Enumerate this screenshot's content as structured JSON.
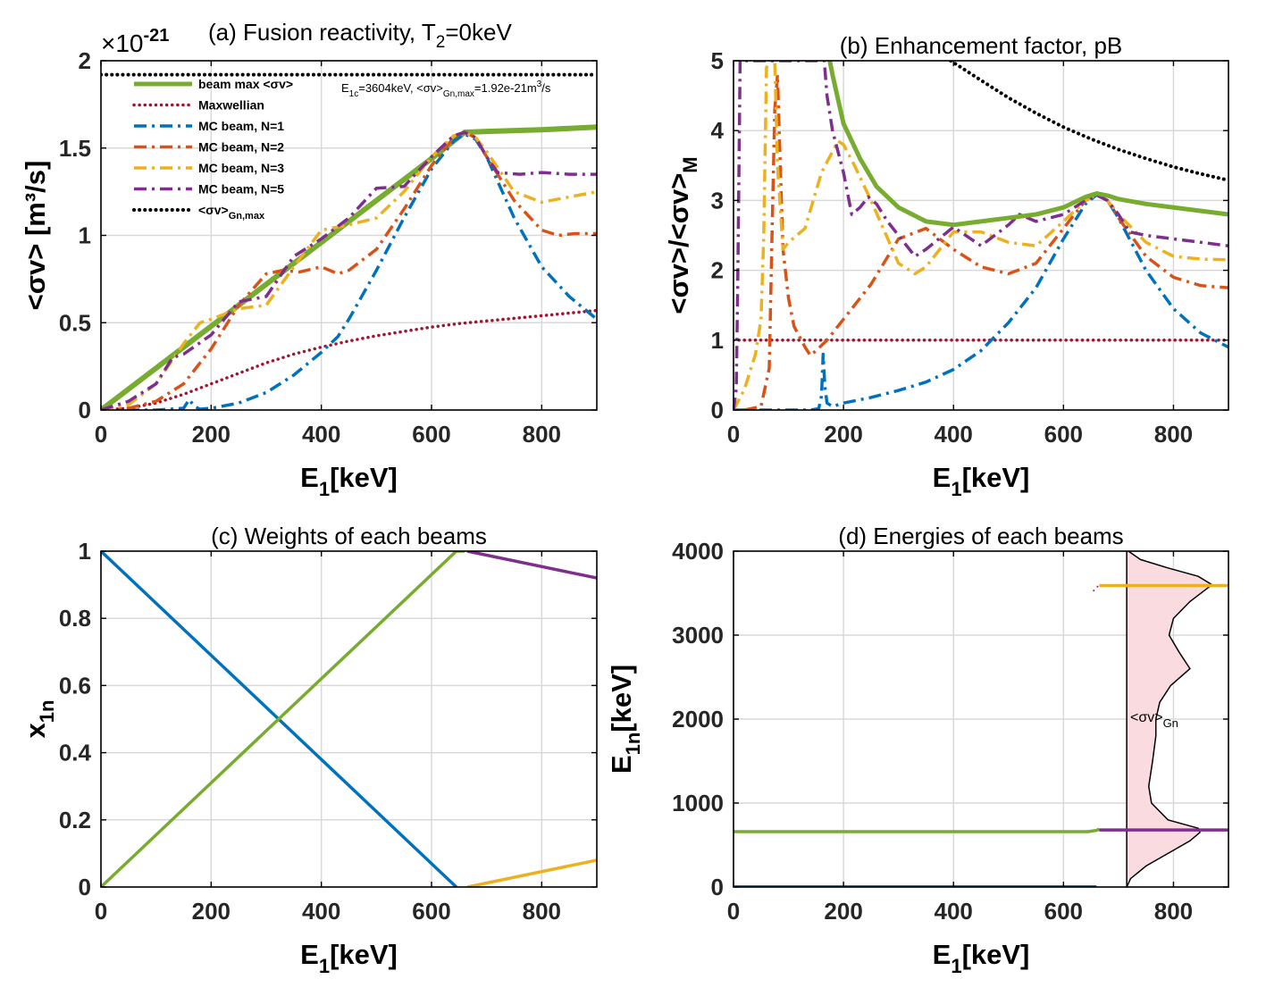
{
  "colors": {
    "green": "#77AC30",
    "red": "#A2142F",
    "blue": "#0072BD",
    "orange": "#D95319",
    "yellow": "#EDB120",
    "purple": "#7E2F8E",
    "black": "#000000",
    "pink": "#FADCE0"
  },
  "chart_data": [
    {
      "id": "a",
      "type": "line",
      "title": "(a) Fusion reactivity, T",
      "title_sub": "2",
      "title_tail": "=0keV",
      "exponent_label": "×10",
      "exponent_power": "-21",
      "xlabel": "E",
      "xlabel_sub": "1",
      "xlabel_tail": "[keV]",
      "ylabel": "<σv> [m³/s]",
      "xlim": [
        0,
        900
      ],
      "ylim": [
        0,
        2
      ],
      "xticks": [
        0,
        200,
        400,
        600,
        800
      ],
      "xtick_labels": [
        "0",
        "200",
        "400",
        "600",
        "800"
      ],
      "yticks": [
        0,
        0.5,
        1,
        1.5,
        2
      ],
      "ytick_labels": [
        "0",
        "0.5",
        "1",
        "1.5",
        "2"
      ],
      "annotation": {
        "prefix": "E",
        "sub1": "1c",
        "mid": "=3604keV, <σv>",
        "sub2": "Gn,max",
        "tail": "=1.92e-21m",
        "sup": "3",
        "end": "/s"
      },
      "legend": {
        "location": "top-left",
        "entries": [
          {
            "label": "beam max <σv>",
            "series": "beam max"
          },
          {
            "label": "Maxwellian",
            "series": "Maxwellian"
          },
          {
            "label": "MC beam, N=1",
            "series": "MC beam, N=1"
          },
          {
            "label": "MC beam, N=2",
            "series": "MC beam, N=2"
          },
          {
            "label": "MC beam, N=3",
            "series": "MC beam, N=3"
          },
          {
            "label": "MC beam, N=5",
            "series": "MC beam, N=5"
          },
          {
            "label": "<σv>",
            "sub": "Gn,max",
            "series": "Gn,max"
          }
        ]
      },
      "series": [
        {
          "name": "beam max",
          "color": "#77AC30",
          "style": "solid",
          "width": 6,
          "x": [
            0,
            100,
            200,
            300,
            400,
            500,
            600,
            660,
            700,
            800,
            900
          ],
          "y": [
            0,
            0.24,
            0.48,
            0.72,
            0.96,
            1.2,
            1.44,
            1.59,
            1.595,
            1.605,
            1.62
          ]
        },
        {
          "name": "Maxwellian",
          "color": "#A2142F",
          "style": "dot",
          "width": 3.5,
          "x": [
            0,
            50,
            100,
            150,
            200,
            250,
            300,
            350,
            400,
            450,
            500,
            550,
            600,
            650,
            700,
            750,
            800,
            850,
            900
          ],
          "y": [
            0,
            0.01,
            0.04,
            0.09,
            0.15,
            0.21,
            0.27,
            0.32,
            0.36,
            0.395,
            0.425,
            0.45,
            0.475,
            0.495,
            0.51,
            0.525,
            0.54,
            0.555,
            0.57
          ]
        },
        {
          "name": "MC beam, N=1",
          "color": "#0072BD",
          "style": "dashdot",
          "width": 3.5,
          "x": [
            0,
            100,
            150,
            160,
            170,
            180,
            200,
            250,
            300,
            350,
            400,
            430,
            450,
            500,
            550,
            600,
            640,
            660,
            680,
            700,
            750,
            800,
            850,
            900
          ],
          "y": [
            0,
            0,
            0.01,
            0.06,
            0.02,
            0.005,
            0.01,
            0.04,
            0.1,
            0.2,
            0.33,
            0.42,
            0.52,
            0.8,
            1.1,
            1.38,
            1.54,
            1.58,
            1.55,
            1.45,
            1.1,
            0.82,
            0.65,
            0.52
          ]
        },
        {
          "name": "MC beam, N=2",
          "color": "#D95319",
          "style": "dashdot",
          "width": 3.5,
          "x": [
            0,
            50,
            100,
            150,
            200,
            250,
            300,
            330,
            360,
            400,
            430,
            450,
            500,
            550,
            600,
            640,
            660,
            680,
            700,
            750,
            800,
            830,
            860,
            900
          ],
          "y": [
            0,
            0.01,
            0.05,
            0.15,
            0.35,
            0.6,
            0.78,
            0.8,
            0.79,
            0.82,
            0.78,
            0.8,
            0.92,
            1.15,
            1.4,
            1.56,
            1.59,
            1.56,
            1.45,
            1.2,
            1.03,
            1.0,
            1.01,
            1.01
          ]
        },
        {
          "name": "MC beam, N=3",
          "color": "#EDB120",
          "style": "dashdot",
          "width": 3.5,
          "x": [
            0,
            50,
            100,
            150,
            180,
            200,
            250,
            300,
            350,
            400,
            450,
            500,
            550,
            600,
            640,
            660,
            680,
            700,
            750,
            800,
            850,
            900
          ],
          "y": [
            0,
            0.03,
            0.15,
            0.38,
            0.5,
            0.52,
            0.58,
            0.6,
            0.82,
            1.03,
            1.06,
            1.1,
            1.25,
            1.45,
            1.57,
            1.59,
            1.56,
            1.48,
            1.25,
            1.19,
            1.22,
            1.25
          ]
        },
        {
          "name": "MC beam, N=5",
          "color": "#7E2F8E",
          "style": "dashdot",
          "width": 3.5,
          "x": [
            0,
            50,
            100,
            130,
            150,
            200,
            250,
            300,
            350,
            400,
            450,
            500,
            550,
            600,
            640,
            660,
            680,
            700,
            720,
            760,
            800,
            850,
            900
          ],
          "y": [
            0,
            0.05,
            0.15,
            0.3,
            0.32,
            0.43,
            0.62,
            0.65,
            0.88,
            0.98,
            1.1,
            1.27,
            1.28,
            1.45,
            1.57,
            1.59,
            1.56,
            1.45,
            1.36,
            1.35,
            1.36,
            1.35,
            1.35
          ]
        },
        {
          "name": "Gn,max",
          "color": "#000000",
          "style": "dot",
          "width": 4,
          "x": [
            0,
            900
          ],
          "y": [
            1.92,
            1.92
          ]
        }
      ]
    },
    {
      "id": "b",
      "type": "line",
      "title": "(b) Enhancement factor, pB",
      "xlabel": "E",
      "xlabel_sub": "1",
      "xlabel_tail": "[keV]",
      "ylabel": "<σv>/<σv>",
      "ylabel_sub": "M",
      "xlim": [
        0,
        900
      ],
      "ylim": [
        0,
        5
      ],
      "xticks": [
        0,
        200,
        400,
        600,
        800
      ],
      "xtick_labels": [
        "0",
        "200",
        "400",
        "600",
        "800"
      ],
      "yticks": [
        0,
        1,
        2,
        3,
        4,
        5
      ],
      "ytick_labels": [
        "0",
        "1",
        "2",
        "3",
        "4",
        "5"
      ],
      "series": [
        {
          "name": "black dotted",
          "color": "#000000",
          "style": "dot",
          "width": 4,
          "x": [
            395,
            450,
            500,
            550,
            600,
            650,
            700,
            750,
            800,
            850,
            900
          ],
          "y": [
            5.0,
            4.72,
            4.47,
            4.25,
            4.05,
            3.88,
            3.73,
            3.6,
            3.48,
            3.38,
            3.29
          ]
        },
        {
          "name": "Maxwellian",
          "color": "#A2142F",
          "style": "dot",
          "width": 3.5,
          "x": [
            0,
            900
          ],
          "y": [
            1,
            1
          ]
        },
        {
          "name": "MC beam, N=1",
          "color": "#0072BD",
          "style": "dashdot",
          "width": 3.5,
          "x": [
            0,
            140,
            155,
            160,
            163,
            166,
            170,
            180,
            200,
            250,
            300,
            350,
            400,
            450,
            500,
            550,
            600,
            640,
            660,
            680,
            700,
            750,
            800,
            850,
            900
          ],
          "y": [
            0,
            0,
            0.02,
            0.2,
            0.8,
            0.35,
            0.1,
            0.05,
            0.1,
            0.18,
            0.28,
            0.4,
            0.58,
            0.85,
            1.25,
            1.75,
            2.45,
            2.95,
            3.08,
            3.0,
            2.75,
            2.0,
            1.45,
            1.1,
            0.9
          ]
        },
        {
          "name": "MC beam, N=2",
          "color": "#D95319",
          "style": "dashdot",
          "width": 3.5,
          "x": [
            20,
            50,
            65,
            70,
            75,
            80,
            85,
            90,
            100,
            110,
            130,
            140,
            150,
            170,
            200,
            250,
            300,
            350,
            400,
            450,
            500,
            550,
            600,
            640,
            660,
            680,
            700,
            750,
            800,
            850,
            900
          ],
          "y": [
            0,
            0.05,
            0.6,
            2.5,
            4.3,
            4.8,
            3.5,
            2.3,
            1.6,
            1.2,
            0.9,
            0.78,
            0.85,
            1.0,
            1.3,
            1.8,
            2.45,
            2.6,
            2.3,
            2.05,
            1.95,
            2.1,
            2.6,
            3.0,
            3.08,
            3.0,
            2.75,
            2.2,
            1.9,
            1.78,
            1.75
          ]
        },
        {
          "name": "MC beam, N=3",
          "color": "#EDB120",
          "style": "dashdot",
          "width": 3.5,
          "x": [
            0,
            20,
            40,
            50,
            55,
            60,
            65,
            70,
            75,
            80,
            90,
            100,
            130,
            160,
            190,
            200,
            220,
            250,
            300,
            330,
            350,
            400,
            450,
            500,
            550,
            600,
            640,
            660,
            680,
            700,
            750,
            800,
            850,
            900
          ],
          "y": [
            0,
            0.3,
            0.8,
            1.3,
            2.5,
            4.9,
            5.0,
            5.0,
            5.0,
            3.5,
            2.3,
            2.4,
            2.6,
            3.4,
            3.85,
            3.8,
            3.5,
            3.0,
            2.1,
            1.95,
            2.05,
            2.55,
            2.55,
            2.4,
            2.35,
            2.7,
            3.0,
            3.08,
            3.0,
            2.8,
            2.4,
            2.2,
            2.16,
            2.15
          ]
        },
        {
          "name": "MC beam, N=5",
          "color": "#7E2F8E",
          "style": "dashdot",
          "width": 3.5,
          "x": [
            0,
            5,
            8,
            12,
            160,
            165,
            170,
            180,
            200,
            215,
            230,
            245,
            260,
            280,
            300,
            330,
            350,
            400,
            450,
            500,
            520,
            550,
            600,
            640,
            660,
            680,
            700,
            720,
            750,
            800,
            850,
            900
          ],
          "y": [
            0,
            0.3,
            2.0,
            5.0,
            5.0,
            5.0,
            4.5,
            4.0,
            3.4,
            2.8,
            2.9,
            3.05,
            2.95,
            2.7,
            2.5,
            2.2,
            2.3,
            2.62,
            2.35,
            2.65,
            2.8,
            2.7,
            2.8,
            3.0,
            3.08,
            3.0,
            2.8,
            2.55,
            2.5,
            2.45,
            2.4,
            2.35
          ]
        },
        {
          "name": "beam max",
          "color": "#77AC30",
          "style": "solid",
          "width": 5,
          "x": [
            175,
            180,
            200,
            230,
            260,
            300,
            350,
            400,
            450,
            500,
            550,
            600,
            640,
            660,
            680,
            700,
            750,
            800,
            850,
            900
          ],
          "y": [
            5.0,
            4.8,
            4.1,
            3.6,
            3.2,
            2.9,
            2.7,
            2.65,
            2.7,
            2.75,
            2.8,
            2.9,
            3.05,
            3.1,
            3.07,
            3.02,
            2.95,
            2.9,
            2.85,
            2.8
          ]
        }
      ]
    },
    {
      "id": "c",
      "type": "line",
      "title": "(c) Weights of each beams",
      "xlabel": "E",
      "xlabel_sub": "1",
      "xlabel_tail": "[keV]",
      "ylabel": "x",
      "ylabel_sub": "1n",
      "xlim": [
        0,
        900
      ],
      "ylim": [
        0,
        1
      ],
      "xticks": [
        0,
        200,
        400,
        600,
        800
      ],
      "xtick_labels": [
        "0",
        "200",
        "400",
        "600",
        "800"
      ],
      "yticks": [
        0,
        0.2,
        0.4,
        0.6,
        0.8,
        1
      ],
      "ytick_labels": [
        "0",
        "0.2",
        "0.4",
        "0.6",
        "0.8",
        "1"
      ],
      "series": [
        {
          "name": "blue",
          "color": "#0072BD",
          "style": "solid",
          "width": 3.5,
          "x": [
            0,
            645
          ],
          "y": [
            1,
            0
          ]
        },
        {
          "name": "green",
          "color": "#77AC30",
          "style": "solid",
          "width": 3.5,
          "x": [
            0,
            645,
            660
          ],
          "y": [
            0,
            1,
            1
          ]
        },
        {
          "name": "purple",
          "color": "#7E2F8E",
          "style": "solid",
          "width": 3.5,
          "x": [
            665,
            900
          ],
          "y": [
            1,
            0.92
          ]
        },
        {
          "name": "yellow",
          "color": "#EDB120",
          "style": "solid",
          "width": 3.5,
          "x": [
            665,
            900
          ],
          "y": [
            0,
            0.08
          ]
        }
      ]
    },
    {
      "id": "d",
      "type": "line",
      "title": "(d) Energies of each beams",
      "xlabel": "E",
      "xlabel_sub": "1",
      "xlabel_tail": "[keV]",
      "ylabel": "E",
      "ylabel_sub": "1n",
      "ylabel_tail": "[keV]",
      "xlim": [
        0,
        900
      ],
      "ylim": [
        0,
        4000
      ],
      "xticks": [
        0,
        200,
        400,
        600,
        800
      ],
      "xtick_labels": [
        "0",
        "200",
        "400",
        "600",
        "800"
      ],
      "yticks": [
        0,
        1000,
        2000,
        3000,
        4000
      ],
      "ytick_labels": [
        "0",
        "1000",
        "2000",
        "3000",
        "4000"
      ],
      "inset_label": "<σv>",
      "inset_label_sub": "Gn",
      "inset_baseline_x": 715,
      "inset_profile": {
        "y": [
          0,
          100,
          250,
          400,
          550,
          650,
          700,
          800,
          1000,
          1200,
          1500,
          1800,
          2000,
          2200,
          2400,
          2600,
          2800,
          3000,
          3200,
          3400,
          3550,
          3600,
          3700,
          3800,
          3900,
          4000
        ],
        "x": [
          715,
          722,
          750,
          790,
          830,
          848,
          845,
          790,
          760,
          755,
          762,
          768,
          768,
          775,
          795,
          830,
          810,
          792,
          800,
          830,
          860,
          870,
          845,
          790,
          740,
          718
        ]
      },
      "series": [
        {
          "name": "blue",
          "color": "#0072BD",
          "style": "solid",
          "width": 4,
          "x": [
            0,
            660
          ],
          "y": [
            0,
            0
          ]
        },
        {
          "name": "green",
          "color": "#77AC30",
          "style": "solid",
          "width": 3.5,
          "x": [
            0,
            645,
            660,
            665
          ],
          "y": [
            660,
            660,
            675,
            690
          ]
        },
        {
          "name": "purple",
          "color": "#7E2F8E",
          "style": "solid",
          "width": 3.5,
          "x": [
            665,
            900
          ],
          "y": [
            680,
            680
          ]
        },
        {
          "name": "yellow",
          "color": "#EDB120",
          "style": "solid",
          "width": 3.5,
          "x": [
            665,
            900
          ],
          "y": [
            3590,
            3590
          ]
        },
        {
          "name": "purple-tail",
          "color": "#7E2F8E",
          "style": "dot",
          "width": 2,
          "x": [
            655,
            665
          ],
          "y": [
            3530,
            3600
          ]
        }
      ]
    }
  ]
}
